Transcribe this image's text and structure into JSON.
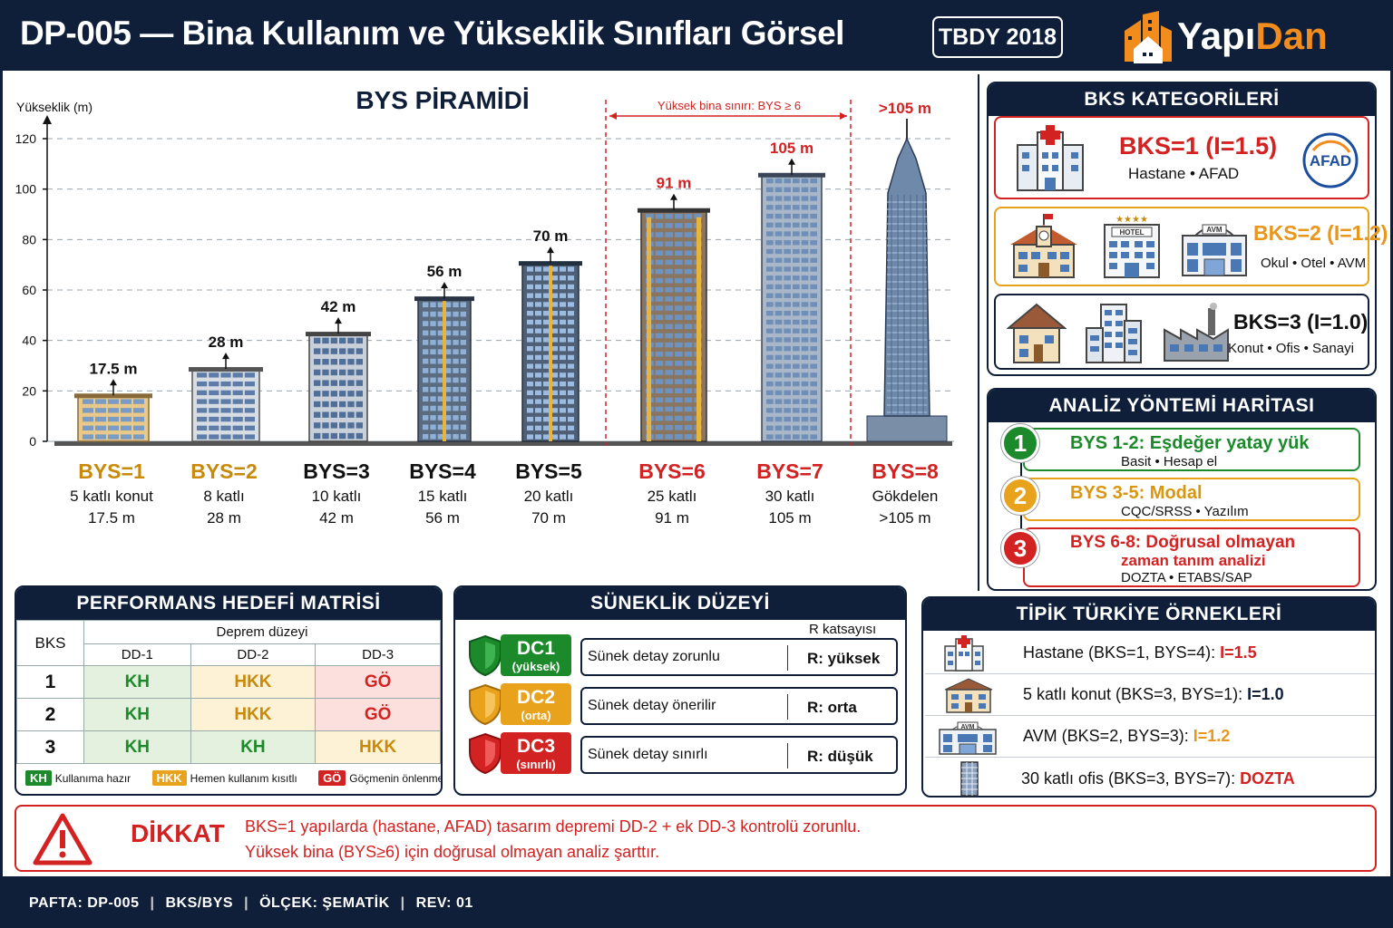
{
  "header": {
    "title": "DP-005 — Bina Kullanım ve Yükseklik Sınıfları Görsel",
    "standard": "TBDY 2018",
    "brand_a": "Yapı",
    "brand_b": "Dan"
  },
  "pyramid": {
    "title": "BYS PİRAMİDİ",
    "ylabel": "Yükseklik (m)",
    "high_limit_label": "Yüksek bina sınırı: BYS ≥ 6",
    "top_label": ">105 m"
  },
  "chart_data": {
    "type": "bar",
    "title": "BYS PİRAMİDİ",
    "ylabel": "Yükseklik (m)",
    "ylim": [
      0,
      120
    ],
    "yticks": [
      0,
      20,
      40,
      60,
      80,
      100,
      120
    ],
    "categories": [
      "BYS=1",
      "BYS=2",
      "BYS=3",
      "BYS=4",
      "BYS=5",
      "BYS=6",
      "BYS=7",
      "BYS=8"
    ],
    "values": [
      17.5,
      28,
      42,
      56,
      70,
      91,
      105,
      120
    ],
    "value_labels": [
      "17.5 m",
      "28 m",
      "42 m",
      "56 m",
      "70 m",
      "91 m",
      "105 m",
      ""
    ],
    "descriptions": [
      "5 katlı konut",
      "8 katlı",
      "10 katlı",
      "15 katlı",
      "20 katlı",
      "25 katlı",
      "30 katlı",
      "Gökdelen"
    ],
    "heights_text": [
      "17.5 m",
      "28 m",
      "42 m",
      "56 m",
      "70 m",
      "91 m",
      "105 m",
      ">105 m"
    ],
    "colors": [
      "#c98a0a",
      "#c98a0a",
      "#111111",
      "#111111",
      "#111111",
      "#d32222",
      "#d32222",
      "#d32222"
    ],
    "grid": true
  },
  "bks": {
    "title": "BKS KATEGORİLERİ",
    "c1": {
      "label": "BKS=1  (I=1.5)",
      "sub": "Hastane  •  AFAD",
      "badge": "AFAD"
    },
    "c2": {
      "label": "BKS=2 (I=1.2)",
      "sub": "Okul • Otel • AVM",
      "hotel": "HOTEL",
      "avm": "AVM"
    },
    "c3": {
      "label": "BKS=3 (I=1.0)",
      "sub": "Konut • Ofis • Sanayi"
    }
  },
  "analysis": {
    "title": "ANALİZ YÖNTEMİ HARİTASI",
    "steps": [
      {
        "n": "1",
        "title": "BYS 1-2: Eşdeğer yatay yük",
        "sub": "Basit  •  Hesap el"
      },
      {
        "n": "2",
        "title": "BYS 3-5: Modal",
        "sub": "CQC/SRSS  •  Yazılım"
      },
      {
        "n": "3",
        "title": "BYS 6-8: Doğrusal olmayan",
        "title2": "zaman tanım analizi",
        "sub": "DOZTA  •  ETABS/SAP"
      }
    ]
  },
  "perf": {
    "title": "PERFORMANS HEDEFİ MATRİSİ",
    "col_bks": "BKS",
    "col_group": "Deprem düzeyi",
    "cols": [
      "DD-1",
      "DD-2",
      "DD-3"
    ],
    "rows": [
      {
        "bks": "1",
        "v": [
          "KH",
          "HKK",
          "GÖ"
        ]
      },
      {
        "bks": "2",
        "v": [
          "KH",
          "HKK",
          "GÖ"
        ]
      },
      {
        "bks": "3",
        "v": [
          "KH",
          "KH",
          "HKK"
        ]
      }
    ],
    "legend": [
      {
        "k": "KH",
        "t": "Kullanıma hazır"
      },
      {
        "k": "HKK",
        "t": "Hemen kullanım kısıtlı"
      },
      {
        "k": "GÖ",
        "t": "Göçmenin önlenmesi"
      }
    ]
  },
  "ductility": {
    "title": "SÜNEKLİK DÜZEYİ",
    "rlabel": "R katsayısı",
    "rows": [
      {
        "code": "DC1",
        "level": "(yüksek)",
        "text": "Sünek detay zorunlu",
        "r": "R: yüksek"
      },
      {
        "code": "DC2",
        "level": "(orta)",
        "text": "Sünek detay önerilir",
        "r": "R: orta"
      },
      {
        "code": "DC3",
        "level": "(sınırlı)",
        "text": "Sünek detay sınırlı",
        "r": "R: düşük"
      }
    ]
  },
  "examples": {
    "title": "TİPİK TÜRKİYE ÖRNEKLERİ",
    "avm": "AVM",
    "rows": [
      {
        "text": "Hastane (BKS=1, BYS=4): ",
        "val": "I=1.5"
      },
      {
        "text": "5 katlı konut (BKS=3, BYS=1): ",
        "val": "I=1.0"
      },
      {
        "text": "AVM (BKS=2, BYS=3): ",
        "val": "I=1.2"
      },
      {
        "text": "30 katlı ofis (BKS=3, BYS=7): ",
        "val": "DOZTA"
      }
    ]
  },
  "warning": {
    "title": "DİKKAT",
    "line1": "BKS=1 yapılarda (hastane, AFAD) tasarım depremi DD-2 + ek DD-3 kontrolü zorunlu.",
    "line2": "Yüksek bina (BYS≥6) için doğrusal olmayan analiz şarttır."
  },
  "footer": {
    "sheet": "PAFTA: DP-005",
    "topic": "BKS/BYS",
    "scale": "ÖLÇEK: ŞEMATİK",
    "rev": "REV: 01"
  }
}
